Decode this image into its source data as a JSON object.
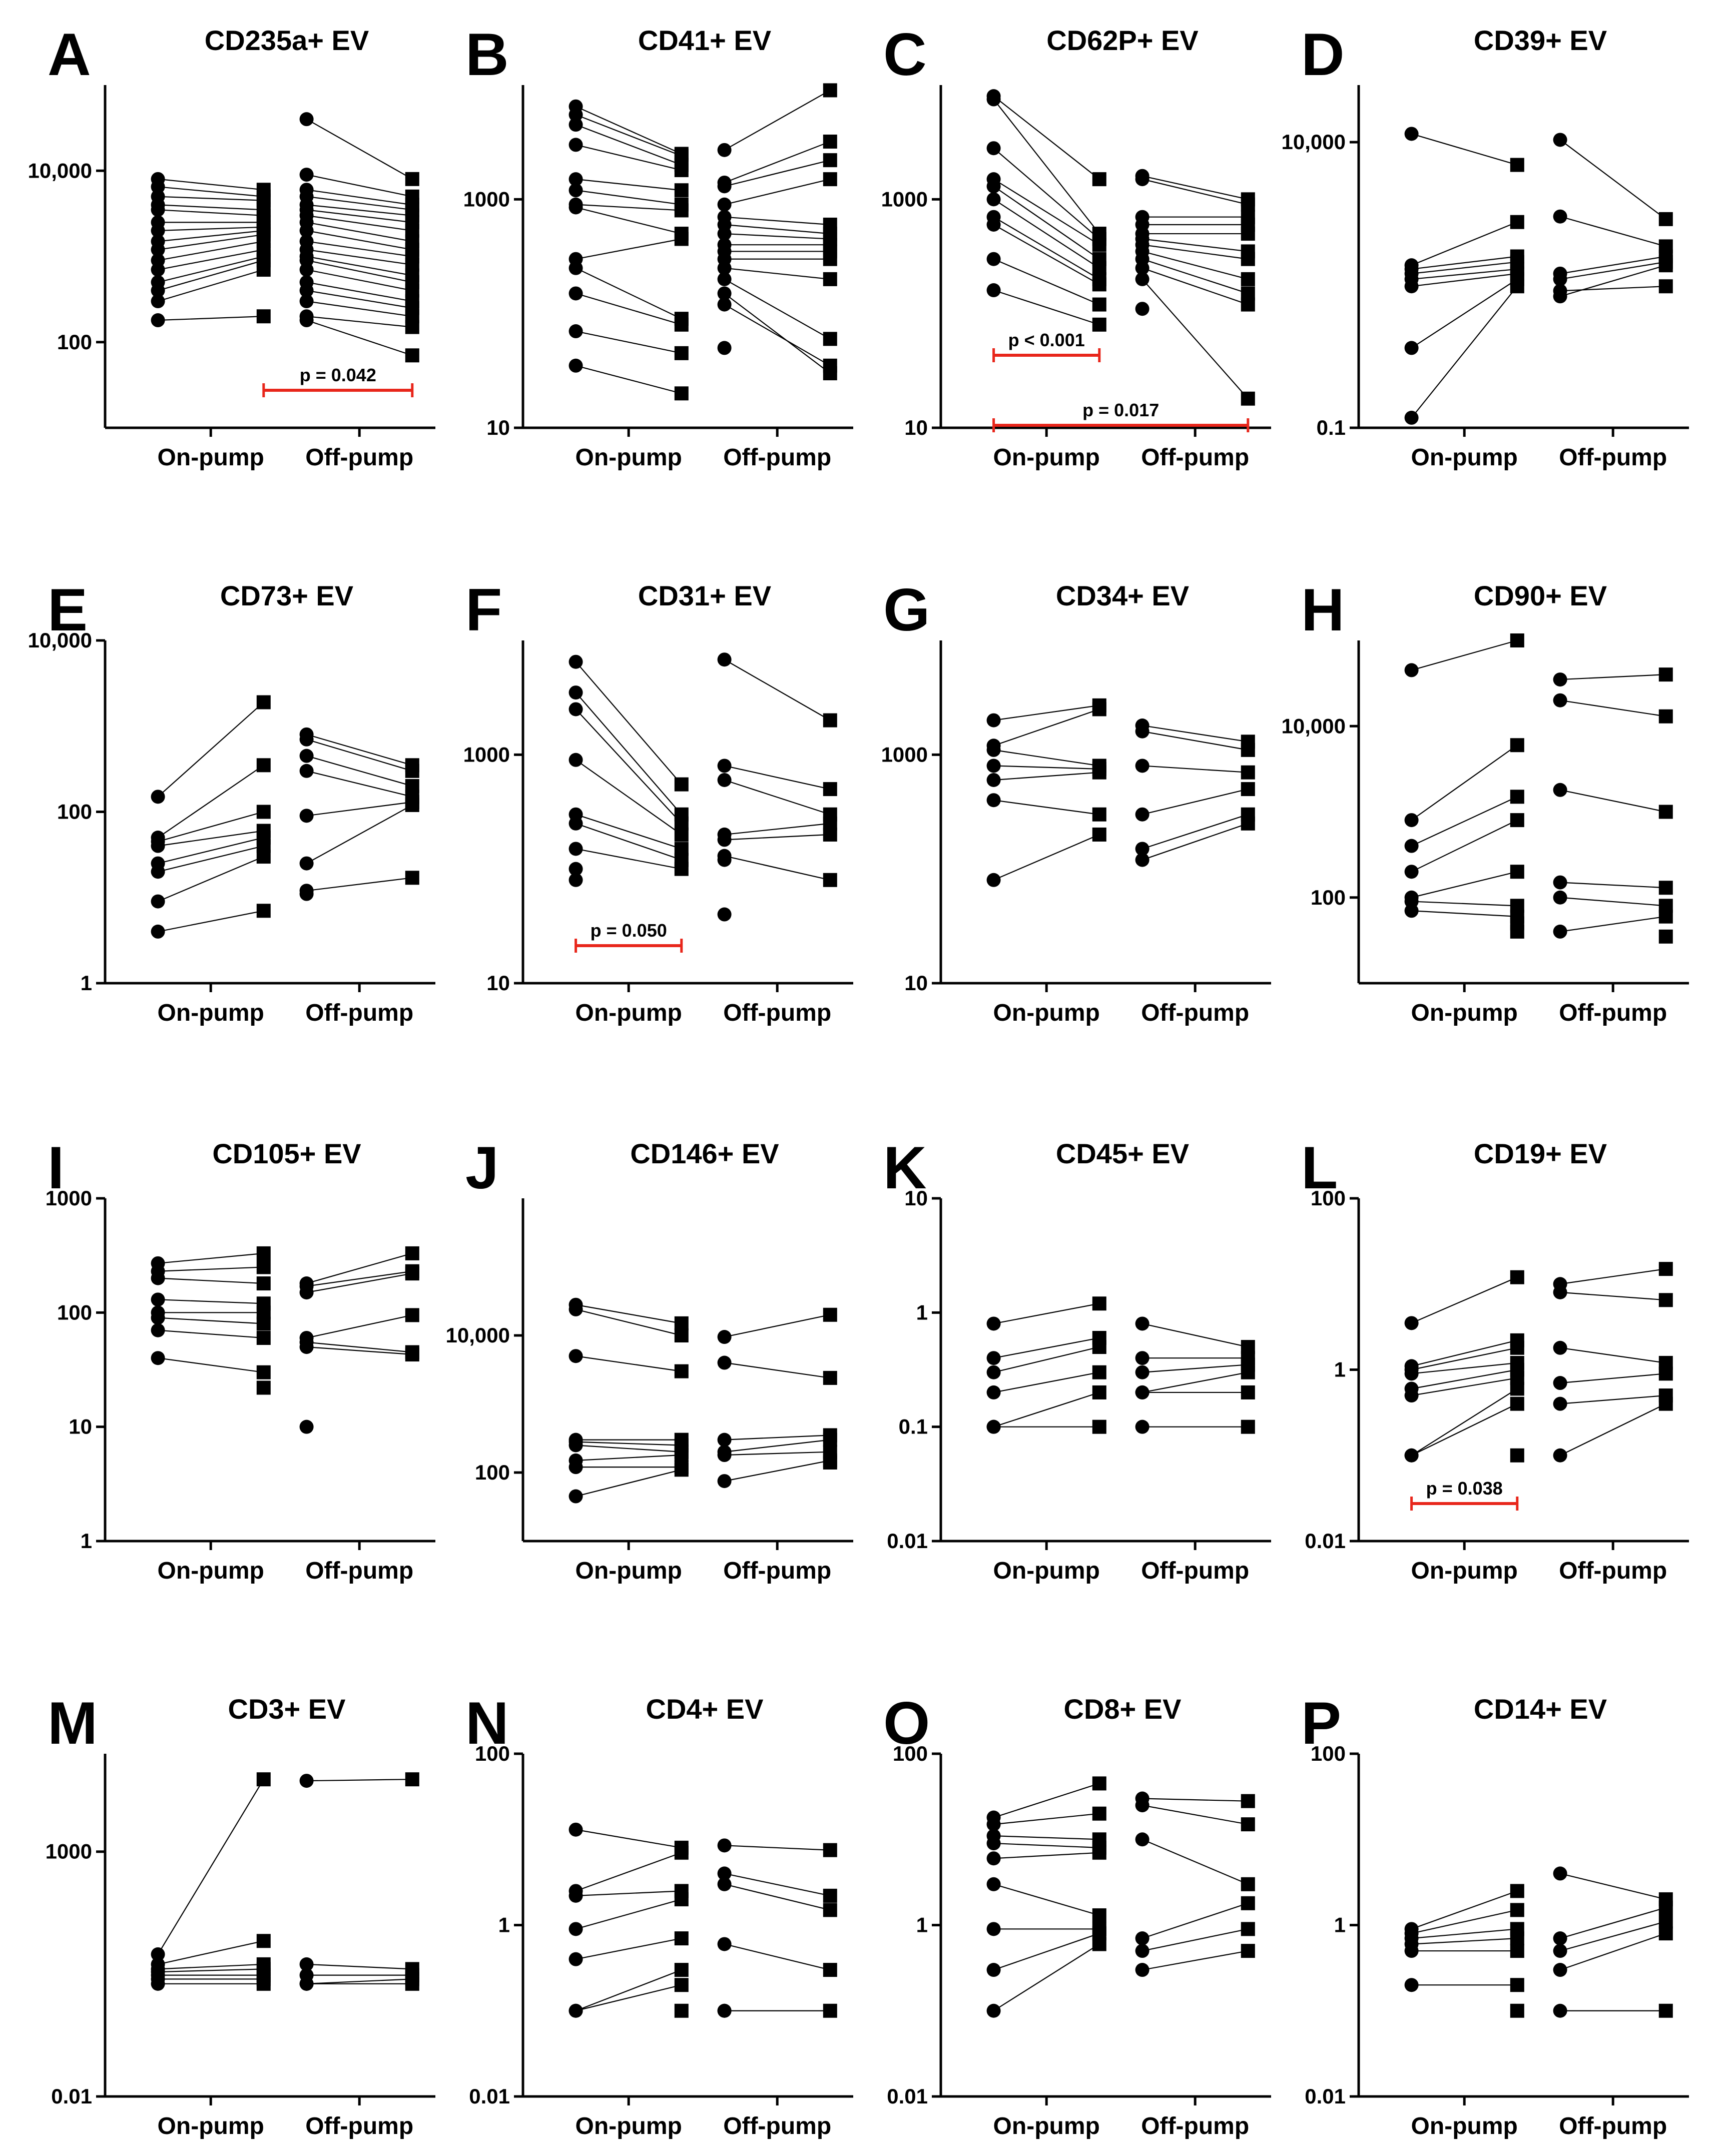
{
  "figure": {
    "categories": [
      "On-pump",
      "Off-pump"
    ],
    "colors": {
      "axis": "#000000",
      "marker": "#000000",
      "pair_line": "#000000",
      "significance": "#e8261b"
    }
  },
  "chart_data": [
    {
      "letter": "A",
      "title": "CD235a+ EV",
      "type": "scatter",
      "scale": "log",
      "ylim": [
        10,
        100000
      ],
      "ticks": [
        100,
        10000
      ],
      "tick_labels": [
        "100",
        "10,000"
      ],
      "categories": [
        "On-pump",
        "Off-pump"
      ],
      "pairs": [
        {
          "group": 0,
          "pre": [
            8000,
            6500,
            5000,
            4000,
            3500,
            2500,
            2000,
            1500,
            1200,
            900,
            700,
            500,
            400,
            300,
            180
          ],
          "post": [
            6000,
            5000,
            4500,
            3500,
            3000,
            2500,
            2200,
            2000,
            1800,
            1500,
            1200,
            1000,
            900,
            700,
            200
          ]
        },
        {
          "group": 1,
          "pre": [
            40000,
            9000,
            6000,
            5000,
            4000,
            3500,
            3000,
            2500,
            2000,
            1500,
            1200,
            1000,
            900,
            700,
            500,
            400,
            300,
            200,
            180
          ],
          "post": [
            8000,
            5000,
            4000,
            3500,
            3000,
            2500,
            2000,
            1500,
            1200,
            1000,
            800,
            600,
            500,
            400,
            300,
            250,
            200,
            150,
            70
          ]
        }
      ],
      "significance": [
        {
          "label": "p = 0.042",
          "from": "post0",
          "to": "post1"
        }
      ]
    },
    {
      "letter": "B",
      "title": "CD41+ EV",
      "type": "scatter",
      "scale": "log",
      "ylim": [
        10,
        10000
      ],
      "ticks": [
        10,
        1000
      ],
      "tick_labels": [
        "10",
        "1000"
      ],
      "categories": [
        "On-pump",
        "Off-pump"
      ],
      "pairs": [
        {
          "group": 0,
          "pre": [
            6500,
            5500,
            4500,
            3000,
            1500,
            1200,
            900,
            850,
            300,
            250,
            150,
            70,
            35
          ],
          "post": [
            2500,
            2400,
            2000,
            1800,
            1200,
            900,
            800,
            500,
            450,
            90,
            80,
            45,
            20
          ]
        },
        {
          "group": 1,
          "pre": [
            2700,
            1400,
            1300,
            900,
            700,
            600,
            500,
            400,
            350,
            300,
            250,
            200,
            150,
            120,
            50
          ],
          "post": [
            9000,
            3200,
            2200,
            1500,
            600,
            500,
            450,
            400,
            350,
            300,
            200,
            60,
            30,
            35
          ]
        }
      ],
      "significance": []
    },
    {
      "letter": "C",
      "title": "CD62P+ EV",
      "type": "scatter",
      "scale": "log",
      "ylim": [
        10,
        10000
      ],
      "ticks": [
        10,
        1000
      ],
      "tick_labels": [
        "10",
        "1000"
      ],
      "categories": [
        "On-pump",
        "Off-pump"
      ],
      "pairs": [
        {
          "group": 0,
          "pre": [
            8000,
            7500,
            2800,
            1500,
            1300,
            1000,
            700,
            600,
            300,
            160
          ],
          "post": [
            1500,
            500,
            450,
            400,
            300,
            250,
            200,
            180,
            120,
            80
          ]
        },
        {
          "group": 1,
          "pre": [
            1600,
            1500,
            700,
            600,
            500,
            450,
            400,
            350,
            300,
            250,
            200,
            110
          ],
          "post": [
            1000,
            900,
            700,
            600,
            500,
            350,
            300,
            200,
            150,
            120,
            18
          ]
        }
      ],
      "significance": [
        {
          "label": "p < 0.001",
          "from": "pre0",
          "to": "post0"
        },
        {
          "label": "p = 0.017",
          "from": "pre0",
          "to": "post1"
        }
      ]
    },
    {
      "letter": "D",
      "title": "CD39+ EV",
      "type": "scatter",
      "scale": "log",
      "ylim": [
        0.1,
        100000
      ],
      "ticks": [
        0.1,
        10000
      ],
      "tick_labels": [
        "0.1",
        "10,000"
      ],
      "categories": [
        "On-pump",
        "Off-pump"
      ],
      "pairs": [
        {
          "group": 0,
          "pre": [
            14000,
            70,
            60,
            50,
            40,
            30,
            2.5,
            0.15
          ],
          "post": [
            4000,
            400,
            100,
            80,
            60,
            50,
            40,
            30
          ]
        },
        {
          "group": 1,
          "pre": [
            11000,
            500,
            50,
            40,
            20,
            25
          ],
          "post": [
            450,
            150,
            100,
            80,
            70,
            30
          ]
        }
      ],
      "significance": []
    },
    {
      "letter": "E",
      "title": "CD73+ EV",
      "type": "scatter",
      "scale": "log",
      "ylim": [
        1,
        10000
      ],
      "ticks": [
        1,
        100,
        10000
      ],
      "tick_labels": [
        "1",
        "100",
        "10,000"
      ],
      "categories": [
        "On-pump",
        "Off-pump"
      ],
      "pairs": [
        {
          "group": 0,
          "pre": [
            150,
            50,
            45,
            40,
            25,
            20,
            9,
            4
          ],
          "post": [
            1900,
            350,
            100,
            60,
            50,
            40,
            30,
            7
          ]
        },
        {
          "group": 1,
          "pre": [
            800,
            700,
            450,
            300,
            90,
            25,
            12,
            11
          ],
          "post": [
            350,
            300,
            200,
            150,
            130,
            120,
            17
          ]
        }
      ],
      "significance": []
    },
    {
      "letter": "F",
      "title": "CD31+ EV",
      "type": "scatter",
      "scale": "log",
      "ylim": [
        10,
        10000
      ],
      "ticks": [
        10,
        1000
      ],
      "tick_labels": [
        "10",
        "1000"
      ],
      "categories": [
        "On-pump",
        "Off-pump"
      ],
      "pairs": [
        {
          "group": 0,
          "pre": [
            6500,
            3500,
            2500,
            900,
            300,
            250,
            150,
            100,
            80
          ],
          "post": [
            550,
            300,
            250,
            200,
            150,
            120,
            100
          ]
        },
        {
          "group": 1,
          "pre": [
            6800,
            800,
            600,
            200,
            180,
            130,
            120,
            40
          ],
          "post": [
            2000,
            500,
            300,
            250,
            200,
            80
          ]
        }
      ],
      "significance": [
        {
          "label": "p = 0.050",
          "from": "pre0",
          "to": "post0"
        }
      ]
    },
    {
      "letter": "G",
      "title": "CD34+ EV",
      "type": "scatter",
      "scale": "log",
      "ylim": [
        10,
        10000
      ],
      "ticks": [
        10,
        1000
      ],
      "tick_labels": [
        "10",
        "1000"
      ],
      "categories": [
        "On-pump",
        "Off-pump"
      ],
      "pairs": [
        {
          "group": 0,
          "pre": [
            2000,
            1200,
            1100,
            800,
            600,
            400,
            80
          ],
          "post": [
            2700,
            2500,
            800,
            750,
            700,
            300,
            200
          ]
        },
        {
          "group": 1,
          "pre": [
            1800,
            1600,
            800,
            300,
            150,
            120
          ],
          "post": [
            1300,
            1100,
            700,
            500,
            300,
            250
          ]
        }
      ],
      "significance": []
    },
    {
      "letter": "H",
      "title": "CD90+ EV",
      "type": "scatter",
      "scale": "log",
      "ylim": [
        10,
        100000
      ],
      "ticks": [
        100,
        10000
      ],
      "tick_labels": [
        "100",
        "10,000"
      ],
      "categories": [
        "On-pump",
        "Off-pump"
      ],
      "pairs": [
        {
          "group": 0,
          "pre": [
            45000,
            800,
            400,
            200,
            100,
            90,
            70
          ],
          "post": [
            100000,
            6000,
            1500,
            800,
            200,
            80,
            60,
            50,
            40
          ]
        },
        {
          "group": 1,
          "pre": [
            35000,
            20000,
            1800,
            150,
            100,
            40
          ],
          "post": [
            40000,
            13000,
            1000,
            130,
            80,
            60,
            35
          ]
        }
      ],
      "significance": []
    },
    {
      "letter": "I",
      "title": "CD105+ EV",
      "type": "scatter",
      "scale": "log",
      "ylim": [
        1,
        1000
      ],
      "ticks": [
        1,
        10,
        100,
        1000
      ],
      "tick_labels": [
        "1",
        "10",
        "100",
        "1000"
      ],
      "categories": [
        "On-pump",
        "Off-pump"
      ],
      "pairs": [
        {
          "group": 0,
          "pre": [
            270,
            230,
            200,
            130,
            100,
            90,
            70,
            40
          ],
          "post": [
            330,
            250,
            180,
            120,
            100,
            80,
            60,
            30,
            22
          ]
        },
        {
          "group": 1,
          "pre": [
            180,
            170,
            150,
            60,
            55,
            50,
            10
          ],
          "post": [
            330,
            230,
            220,
            95,
            45,
            43
          ]
        }
      ],
      "significance": []
    },
    {
      "letter": "J",
      "title": "CD146+ EV",
      "type": "scatter",
      "scale": "log",
      "ylim": [
        10,
        1000000
      ],
      "ticks": [
        100,
        10000
      ],
      "tick_labels": [
        "100",
        "10,000"
      ],
      "categories": [
        "On-pump",
        "Off-pump"
      ],
      "pairs": [
        {
          "group": 0,
          "pre": [
            28000,
            24000,
            5000,
            300,
            280,
            250,
            150,
            120,
            45
          ],
          "post": [
            15000,
            10000,
            3000,
            300,
            250,
            200,
            180,
            120,
            110
          ]
        },
        {
          "group": 1,
          "pre": [
            9500,
            4000,
            300,
            200,
            180,
            75
          ],
          "post": [
            20000,
            2400,
            350,
            300,
            200,
            150,
            140
          ]
        }
      ],
      "significance": []
    },
    {
      "letter": "K",
      "title": "CD45+ EV",
      "type": "scatter",
      "scale": "log",
      "ylim": [
        0.01,
        10
      ],
      "ticks": [
        0.01,
        0.1,
        1,
        10
      ],
      "tick_labels": [
        "0.01",
        "0.1",
        "1",
        "10"
      ],
      "categories": [
        "On-pump",
        "Off-pump"
      ],
      "pairs": [
        {
          "group": 0,
          "pre": [
            0.8,
            0.4,
            0.3,
            0.2,
            0.1,
            0.1
          ],
          "post": [
            1.2,
            0.6,
            0.5,
            0.3,
            0.2,
            0.1
          ]
        },
        {
          "group": 1,
          "pre": [
            0.8,
            0.4,
            0.3,
            0.2,
            0.2,
            0.1
          ],
          "post": [
            0.5,
            0.4,
            0.35,
            0.3,
            0.2,
            0.1
          ]
        }
      ],
      "significance": []
    },
    {
      "letter": "L",
      "title": "CD19+ EV",
      "type": "scatter",
      "scale": "log",
      "ylim": [
        0.01,
        100
      ],
      "ticks": [
        0.01,
        1,
        100
      ],
      "tick_labels": [
        "0.01",
        "1",
        "100"
      ],
      "categories": [
        "On-pump",
        "Off-pump"
      ],
      "pairs": [
        {
          "group": 0,
          "pre": [
            3.5,
            1.1,
            1.0,
            0.9,
            0.6,
            0.5,
            0.1,
            0.1
          ],
          "post": [
            12,
            2.2,
            1.8,
            1.2,
            1.0,
            0.8,
            0.6,
            0.4,
            0.1
          ]
        },
        {
          "group": 1,
          "pre": [
            10,
            8,
            1.8,
            0.7,
            0.4,
            0.1
          ],
          "post": [
            15,
            6.5,
            1.2,
            0.9,
            0.5,
            0.4
          ]
        }
      ],
      "significance": [
        {
          "label": "p = 0.038",
          "from": "pre0",
          "to": "post0"
        }
      ]
    },
    {
      "letter": "M",
      "title": "CD3+ EV",
      "type": "scatter",
      "scale": "log",
      "ylim": [
        0.01,
        100000
      ],
      "ticks": [
        0.01,
        1000
      ],
      "tick_labels": [
        "0.01",
        "1000"
      ],
      "categories": [
        "On-pump",
        "Off-pump"
      ],
      "pairs": [
        {
          "group": 0,
          "pre": [
            8,
            5,
            4,
            3.5,
            3,
            2.5,
            2
          ],
          "post": [
            30000,
            15,
            5,
            4,
            3,
            2.5,
            2
          ]
        },
        {
          "group": 1,
          "pre": [
            28000,
            5,
            3,
            2,
            2
          ],
          "post": [
            30000,
            4,
            3,
            2.5,
            2
          ]
        }
      ],
      "significance": []
    },
    {
      "letter": "N",
      "title": "CD4+ EV",
      "type": "scatter",
      "scale": "log",
      "ylim": [
        0.01,
        100
      ],
      "ticks": [
        0.01,
        1,
        100
      ],
      "tick_labels": [
        "0.01",
        "1",
        "100"
      ],
      "categories": [
        "On-pump",
        "Off-pump"
      ],
      "pairs": [
        {
          "group": 0,
          "pre": [
            13,
            2.5,
            2.2,
            0.9,
            0.4,
            0.1,
            0.1
          ],
          "post": [
            8,
            7,
            2.5,
            2,
            0.7,
            0.3,
            0.2,
            0.1
          ]
        },
        {
          "group": 1,
          "pre": [
            8.5,
            4,
            3,
            0.6,
            0.1,
            0.1
          ],
          "post": [
            7.5,
            2.2,
            1.5,
            0.3,
            0.1
          ]
        }
      ],
      "significance": []
    },
    {
      "letter": "O",
      "title": "CD8+ EV",
      "type": "scatter",
      "scale": "log",
      "ylim": [
        0.01,
        100
      ],
      "ticks": [
        0.01,
        1,
        100
      ],
      "tick_labels": [
        "0.01",
        "1",
        "100"
      ],
      "categories": [
        "On-pump",
        "Off-pump"
      ],
      "pairs": [
        {
          "group": 0,
          "pre": [
            18,
            15,
            11,
            9,
            6,
            3,
            0.9,
            0.3,
            0.1
          ],
          "post": [
            45,
            20,
            10,
            8,
            7,
            1.3,
            0.9,
            0.8,
            0.6
          ]
        },
        {
          "group": 1,
          "pre": [
            30,
            25,
            10,
            0.7,
            0.5,
            0.3
          ],
          "post": [
            28,
            15,
            3,
            1.8,
            0.9,
            0.5
          ]
        }
      ],
      "significance": []
    },
    {
      "letter": "P",
      "title": "CD14+ EV",
      "type": "scatter",
      "scale": "log",
      "ylim": [
        0.01,
        100
      ],
      "ticks": [
        0.01,
        1,
        100
      ],
      "tick_labels": [
        "0.01",
        "1",
        "100"
      ],
      "categories": [
        "On-pump",
        "Off-pump"
      ],
      "pairs": [
        {
          "group": 0,
          "pre": [
            0.9,
            0.8,
            0.7,
            0.6,
            0.5,
            0.2
          ],
          "post": [
            2.5,
            1.5,
            0.9,
            0.7,
            0.5,
            0.2,
            0.1
          ]
        },
        {
          "group": 1,
          "pre": [
            4,
            0.7,
            0.5,
            0.3,
            0.1
          ],
          "post": [
            2,
            1.6,
            1.1,
            0.8,
            0.1
          ]
        }
      ],
      "significance": []
    }
  ]
}
